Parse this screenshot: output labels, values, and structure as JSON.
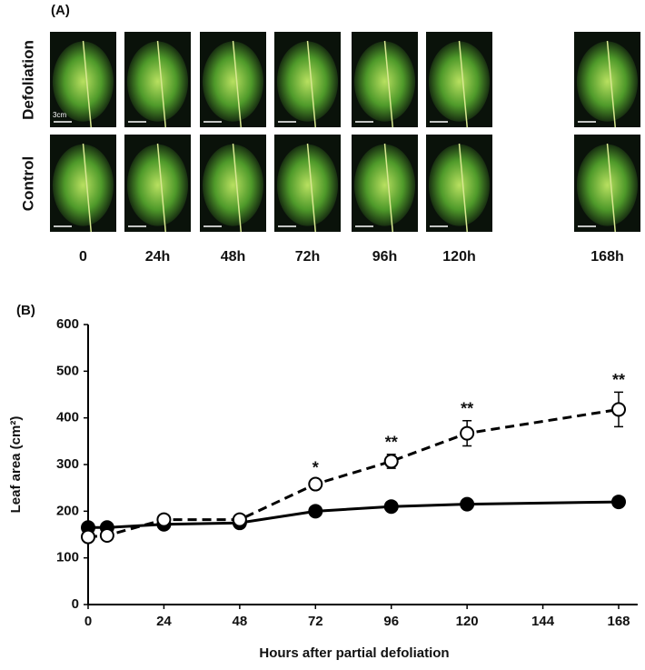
{
  "panel_a": {
    "label": "(A)",
    "rows": [
      "Defoliation",
      "Control"
    ],
    "times": [
      "0",
      "24h",
      "48h",
      "72h",
      "96h",
      "120h",
      "168h"
    ],
    "scale": "3cm"
  },
  "chart_data": {
    "type": "line",
    "panel_label": "(B)",
    "x_label": "Hours after partial defoliation",
    "y_label": "Leaf area (cm²)",
    "x": [
      0,
      6,
      24,
      48,
      72,
      96,
      120,
      168
    ],
    "series": [
      {
        "color": "#000000",
        "marker": "filled",
        "dashed": false,
        "values": [
          165,
          165,
          172,
          175,
          200,
          210,
          215,
          220
        ],
        "errors": [
          5,
          4,
          5,
          5,
          6,
          6,
          8,
          6
        ]
      },
      {
        "color": "#000000",
        "marker": "open",
        "dashed": true,
        "values": [
          145,
          148,
          182,
          182,
          258,
          307,
          367,
          418
        ],
        "errors": [
          5,
          5,
          6,
          6,
          9,
          15,
          27,
          37
        ]
      }
    ],
    "annotations": [
      {
        "x": 72,
        "text": "*"
      },
      {
        "x": 96,
        "text": "**"
      },
      {
        "x": 120,
        "text": "**"
      },
      {
        "x": 168,
        "text": "**"
      }
    ],
    "xlim": [
      0,
      174
    ],
    "xticks": [
      0,
      24,
      48,
      72,
      96,
      120,
      144,
      168
    ],
    "ylim": [
      0,
      600
    ],
    "yticks": [
      0,
      100,
      200,
      300,
      400,
      500,
      600
    ],
    "grid": false
  }
}
